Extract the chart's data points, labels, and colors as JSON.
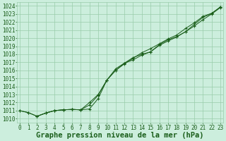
{
  "xlabel": "Graphe pression niveau de la mer (hPa)",
  "x_ticks": [
    0,
    1,
    2,
    3,
    4,
    5,
    6,
    7,
    8,
    9,
    10,
    11,
    12,
    13,
    14,
    15,
    16,
    17,
    18,
    19,
    20,
    21,
    22,
    23
  ],
  "y_ticks": [
    1010,
    1011,
    1012,
    1013,
    1014,
    1015,
    1016,
    1017,
    1018,
    1019,
    1020,
    1021,
    1022,
    1023,
    1024
  ],
  "xlim": [
    -0.3,
    23.3
  ],
  "ylim": [
    1009.5,
    1024.5
  ],
  "background_color": "#cceedd",
  "grid_color": "#99ccaa",
  "line_color": "#1a5e1a",
  "title_fontsize": 7.5,
  "tick_fontsize": 5.5,
  "line1_x": [
    0,
    1,
    2,
    3,
    4,
    5,
    6,
    7,
    8,
    9,
    10,
    11,
    12,
    13,
    14,
    15,
    16,
    17,
    18,
    19,
    20,
    21,
    22,
    23
  ],
  "line1_y": [
    1011.0,
    1010.75,
    1010.3,
    1010.7,
    1011.0,
    1011.1,
    1011.15,
    1011.1,
    1011.2,
    1012.5,
    1014.8,
    1016.2,
    1016.9,
    1017.3,
    1017.9,
    1018.3,
    1019.1,
    1019.65,
    1020.15,
    1020.8,
    1021.5,
    1022.3,
    1023.0,
    1023.8
  ],
  "line2_x": [
    0,
    1,
    2,
    3,
    4,
    5,
    6,
    7,
    8,
    9,
    10,
    11,
    12,
    13,
    14,
    15,
    16,
    17,
    18,
    19,
    20,
    21,
    22,
    23
  ],
  "line2_y": [
    1011.0,
    1010.75,
    1010.3,
    1010.7,
    1011.0,
    1011.1,
    1011.15,
    1011.1,
    1011.7,
    1012.9,
    1014.8,
    1016.0,
    1016.8,
    1017.5,
    1018.2,
    1018.7,
    1019.3,
    1019.9,
    1020.4,
    1021.2,
    1021.9,
    1022.7,
    1023.1,
    1023.85
  ],
  "line3_x": [
    2,
    3,
    4,
    5,
    6,
    7,
    8,
    9,
    10,
    11,
    12,
    13,
    14,
    15,
    16,
    17,
    18,
    19,
    20,
    21,
    22,
    23
  ],
  "line3_y": [
    1010.3,
    1010.7,
    1011.0,
    1011.1,
    1011.15,
    1011.1,
    1012.0,
    1013.0,
    1014.8,
    1016.0,
    1016.9,
    1017.6,
    1018.0,
    1018.3,
    1019.2,
    1019.8,
    1020.2,
    1020.8,
    1021.7,
    1022.6,
    1023.05,
    1023.9
  ],
  "dpi": 100
}
